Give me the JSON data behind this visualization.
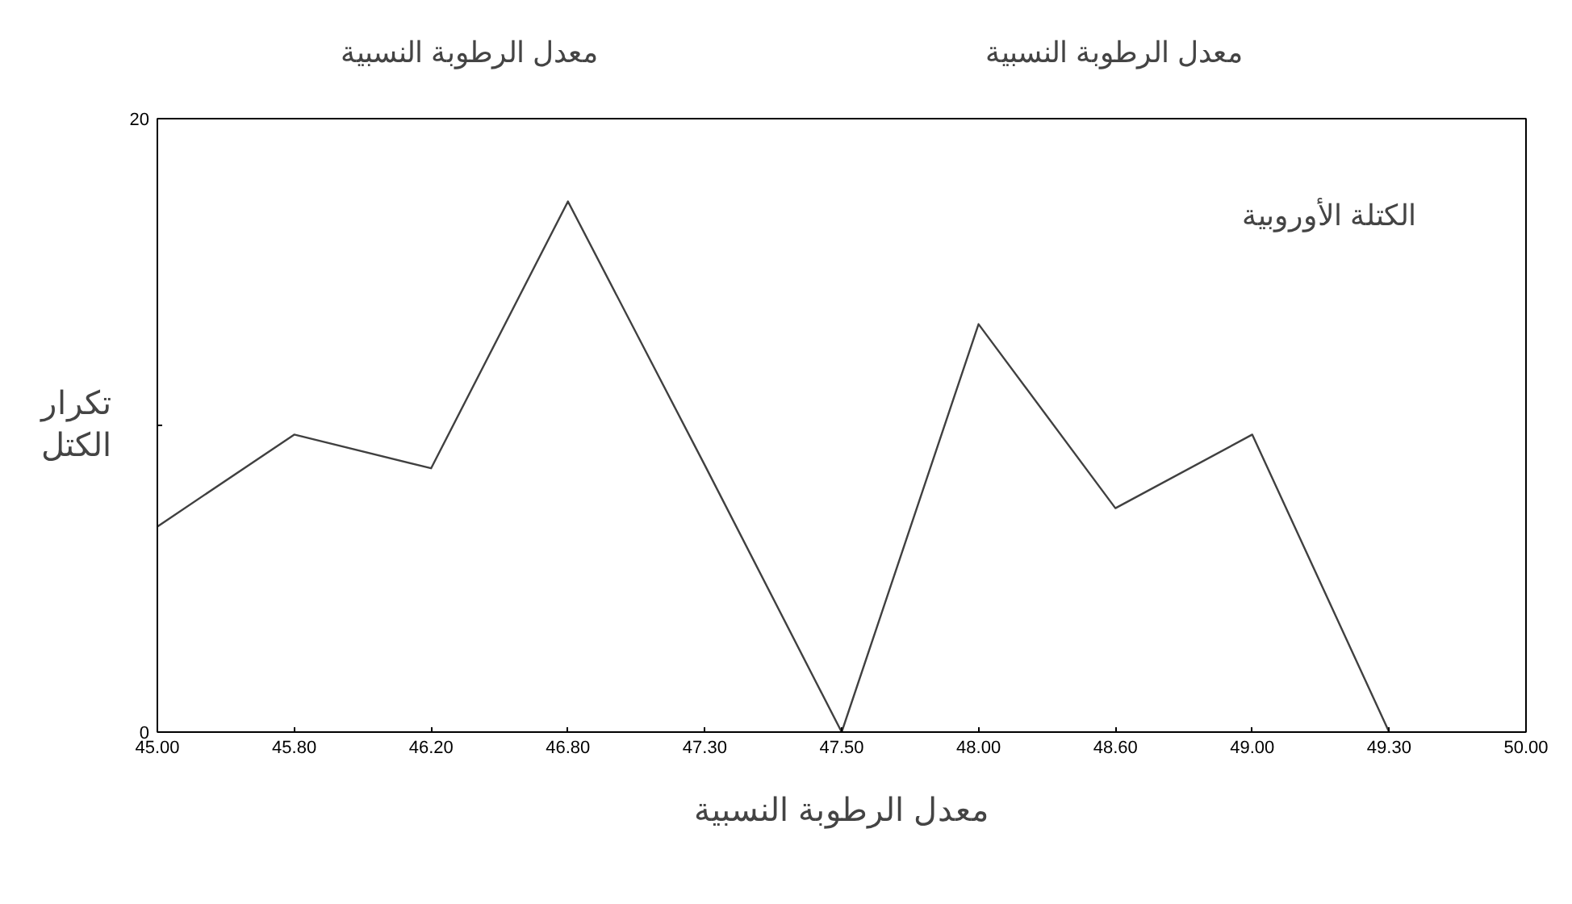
{
  "chart_data": {
    "type": "line",
    "categories": [
      "45.00",
      "45.80",
      "46.20",
      "46.80",
      "47.30",
      "47.50",
      "48.00",
      "48.60",
      "49.00",
      "49.30",
      "50.00"
    ],
    "series": [
      {
        "color": "#404040",
        "values": [
          6.7,
          9.7,
          8.6,
          17.3,
          8.7,
          0,
          13.3,
          7.3,
          9.7,
          0,
          null
        ]
      }
    ],
    "ylim": [
      0,
      20
    ],
    "yticks": [
      0,
      {
        "value": 10,
        "label": null
      },
      20
    ],
    "xlabel": "معدل الرطوبة النسبية",
    "ylabel": "تكرار الكتل",
    "annotations": [
      "معدل الرطوبة النسبية",
      "معدل الرطوبة النسبية",
      "الكتلة الأوروبية"
    ],
    "grid": false,
    "marker": "none",
    "line_style": "solid"
  }
}
